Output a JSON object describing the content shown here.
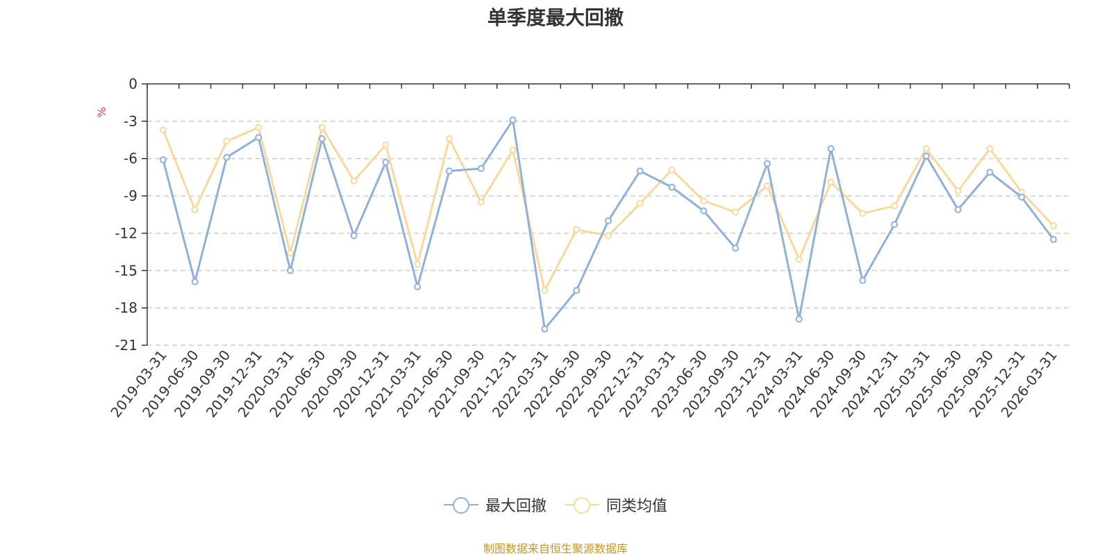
{
  "chart_data": {
    "type": "line",
    "title": "单季度最大回撤",
    "ylabel": "%",
    "xlabel": "",
    "ylim": [
      -21,
      0
    ],
    "yticks": [
      0,
      -3,
      -6,
      -9,
      -12,
      -15,
      -18,
      -21
    ],
    "grid": true,
    "legend_position": "bottom",
    "categories": [
      "2019-03-31",
      "2019-06-30",
      "2019-09-30",
      "2019-12-31",
      "2020-03-31",
      "2020-06-30",
      "2020-09-30",
      "2020-12-31",
      "2021-03-31",
      "2021-06-30",
      "2021-09-30",
      "2021-12-31",
      "2022-03-31",
      "2022-06-30",
      "2022-09-30",
      "2022-12-31",
      "2023-03-31",
      "2023-06-30",
      "2023-09-30",
      "2023-12-31",
      "2024-03-31",
      "2024-06-30",
      "2024-09-30",
      "2024-12-31",
      "2025-03-31",
      "2025-06-30",
      "2025-09-30",
      "2025-12-31",
      "2026-03-31"
    ],
    "series": [
      {
        "name": "最大回撤",
        "color": "#8eb0dc",
        "values": [
          -6.1,
          -15.9,
          -5.9,
          -4.3,
          -15.0,
          -4.4,
          -12.2,
          -6.3,
          -16.3,
          -7.0,
          -6.8,
          -2.9,
          -19.7,
          -16.6,
          -11.0,
          -7.0,
          -8.3,
          -10.2,
          -13.2,
          -6.4,
          -18.9,
          -5.2,
          -15.8,
          -11.3,
          -5.8,
          -10.1,
          -7.1,
          -9.1,
          -12.5
        ]
      },
      {
        "name": "同类均值",
        "color": "#fbd89a",
        "values": [
          -3.7,
          -10.1,
          -4.6,
          -3.5,
          -13.6,
          -3.5,
          -7.8,
          -4.9,
          -14.5,
          -4.4,
          -9.5,
          -5.3,
          -16.6,
          -11.7,
          -12.2,
          -9.6,
          -6.9,
          -9.4,
          -10.3,
          -8.2,
          -14.1,
          -7.9,
          -10.4,
          -9.8,
          -5.2,
          -8.6,
          -5.2,
          -8.7,
          -11.4
        ]
      }
    ]
  },
  "source_note": "制图数据来自恒生聚源数据库"
}
